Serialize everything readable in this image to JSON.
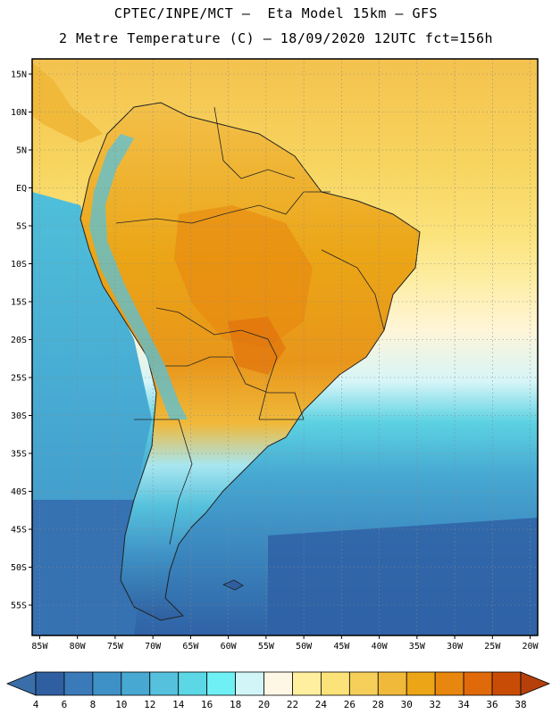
{
  "header": {
    "title_line1": "CPTEC/INPE/MCT —  Eta Model 15km — GFS",
    "title_line2": "2 Metre Temperature (C) — 18/09/2020 12UTC fct=156h"
  },
  "map": {
    "lon_range": [
      -86,
      -19
    ],
    "lat_range": [
      -59,
      17
    ],
    "lat_ticks": [
      {
        "value": 15,
        "label": "15N"
      },
      {
        "value": 10,
        "label": "10N"
      },
      {
        "value": 5,
        "label": "5N"
      },
      {
        "value": 0,
        "label": "EQ"
      },
      {
        "value": -5,
        "label": "5S"
      },
      {
        "value": -10,
        "label": "10S"
      },
      {
        "value": -15,
        "label": "15S"
      },
      {
        "value": -20,
        "label": "20S"
      },
      {
        "value": -25,
        "label": "25S"
      },
      {
        "value": -30,
        "label": "30S"
      },
      {
        "value": -35,
        "label": "35S"
      },
      {
        "value": -40,
        "label": "40S"
      },
      {
        "value": -45,
        "label": "45S"
      },
      {
        "value": -50,
        "label": "50S"
      },
      {
        "value": -55,
        "label": "55S"
      }
    ],
    "lon_ticks": [
      {
        "value": -85,
        "label": "85W"
      },
      {
        "value": -80,
        "label": "80W"
      },
      {
        "value": -75,
        "label": "75W"
      },
      {
        "value": -70,
        "label": "70W"
      },
      {
        "value": -65,
        "label": "65W"
      },
      {
        "value": -60,
        "label": "60W"
      },
      {
        "value": -55,
        "label": "55W"
      },
      {
        "value": -50,
        "label": "50W"
      },
      {
        "value": -45,
        "label": "45W"
      },
      {
        "value": -40,
        "label": "40W"
      },
      {
        "value": -35,
        "label": "35W"
      },
      {
        "value": -30,
        "label": "30W"
      },
      {
        "value": -25,
        "label": "25W"
      },
      {
        "value": -20,
        "label": "20W"
      }
    ]
  },
  "colorbar": {
    "levels": [
      "4",
      "6",
      "8",
      "10",
      "12",
      "14",
      "16",
      "18",
      "20",
      "22",
      "24",
      "26",
      "28",
      "30",
      "32",
      "34",
      "36",
      "38"
    ],
    "colors": [
      "#2f5fa0",
      "#3b7ab8",
      "#3e91c6",
      "#47a9d2",
      "#55c1dc",
      "#5cd7e6",
      "#6ef0f5",
      "#d2f6f8",
      "#fff7e6",
      "#ffef9e",
      "#fbe37a",
      "#f6cf5a",
      "#f0b93a",
      "#eba516",
      "#e8870f",
      "#e06a0a",
      "#c94c06"
    ],
    "left_arrow_color": "#3a6ea8",
    "right_arrow_color": "#b5400a"
  }
}
